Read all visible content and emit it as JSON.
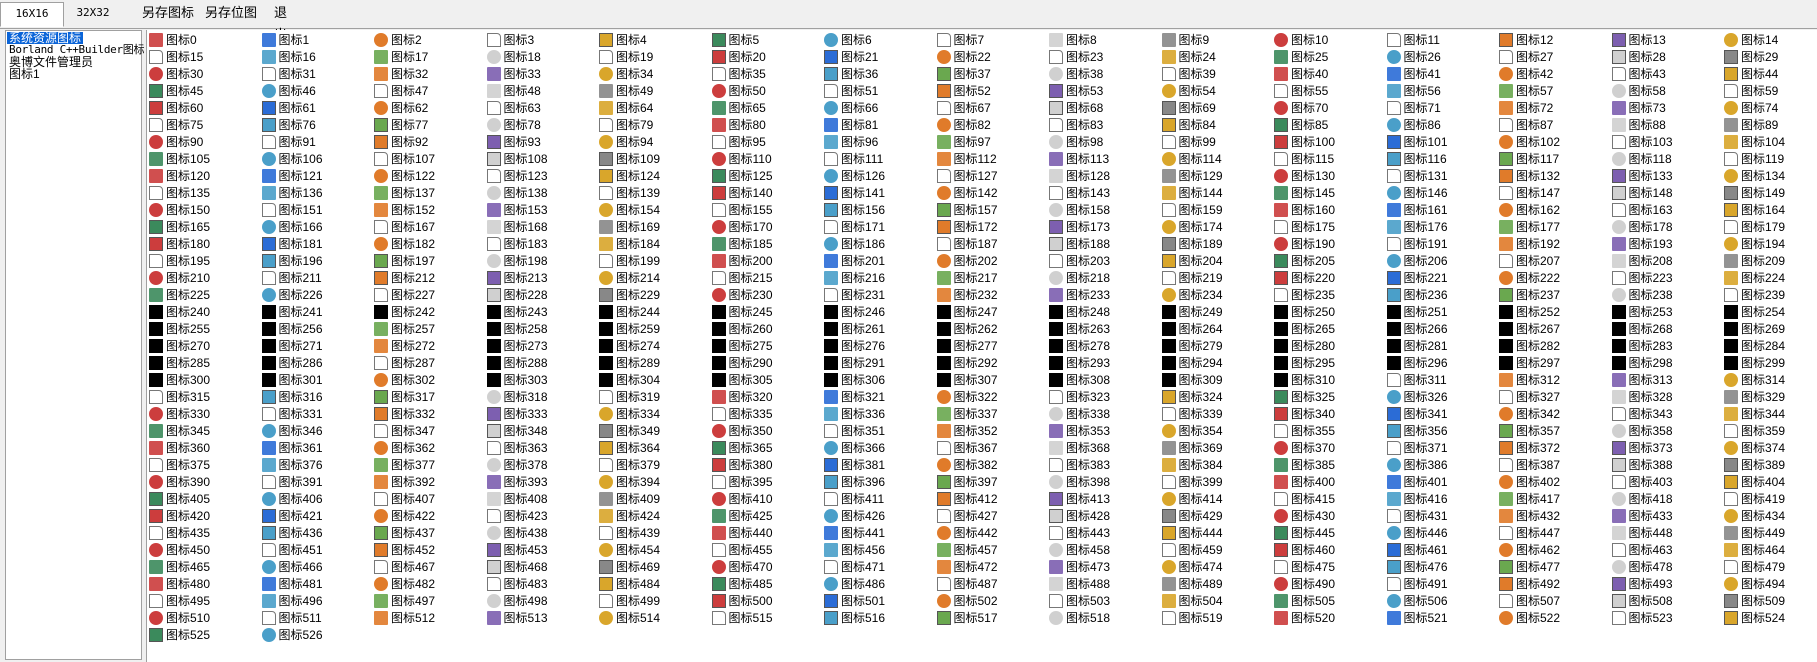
{
  "toolbar": {
    "tabs": [
      {
        "label": "16X16",
        "active": true
      },
      {
        "label": "32X32",
        "active": false
      }
    ],
    "buttons": [
      {
        "label": "另存图标"
      },
      {
        "label": "另存位图"
      },
      {
        "label": "退出"
      }
    ]
  },
  "sources": [
    {
      "label": "系统资源图标",
      "selected": true
    },
    {
      "label": "Borland C++Builder图标",
      "selected": false
    },
    {
      "label": "奥博文件管理员",
      "selected": false
    },
    {
      "label": "图标1",
      "selected": false
    }
  ],
  "icons": {
    "label_prefix": "图标",
    "count": 527,
    "columns": 15
  },
  "colors": {
    "selection": "#0a64d8",
    "panel": "#ffffff",
    "chrome": "#f0f0f0",
    "black_icon": "#000000"
  }
}
